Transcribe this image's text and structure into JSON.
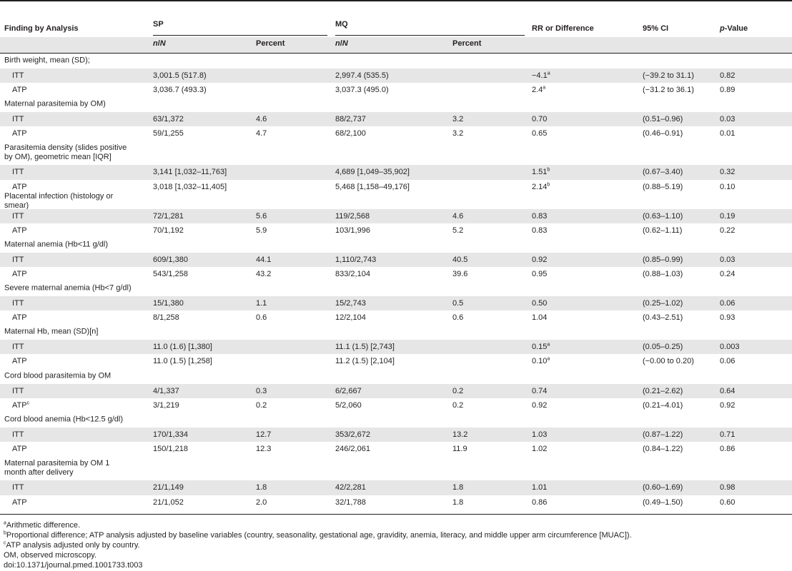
{
  "header": {
    "col_finding": "Finding by Analysis",
    "col_sp": "SP",
    "col_mq": "MQ",
    "col_rr": "RR or Difference",
    "col_ci": "95% CI",
    "col_p_italic": "p",
    "col_p_rest": "-Value",
    "sub_n_a": "n",
    "sub_slash": "/",
    "sub_n_b": "N",
    "sub_percent": "Percent"
  },
  "sections": [
    {
      "title": "Birth weight, mean (SD);",
      "rows": [
        {
          "label": "ITT",
          "sp_n": "3,001.5 (517.8)",
          "sp_pct": "",
          "mq_n": "2,997.4 (535.5)",
          "mq_pct": "",
          "rr": "−4.1",
          "rr_sup": "a",
          "ci": "(−39.2 to 31.1)",
          "p": "0.82"
        },
        {
          "label": "ATP",
          "sp_n": "3,036.7 (493.3)",
          "sp_pct": "",
          "mq_n": "3,037.3 (495.0)",
          "mq_pct": "",
          "rr": "2.4",
          "rr_sup": "a",
          "ci": "(−31.2 to 36.1)",
          "p": "0.89"
        }
      ]
    },
    {
      "title": "Maternal parasitemia by OM)",
      "rows": [
        {
          "label": "ITT",
          "sp_n": "63/1,372",
          "sp_pct": "4.6",
          "mq_n": "88/2,737",
          "mq_pct": "3.2",
          "rr": "0.70",
          "rr_sup": "",
          "ci": "(0.51–0.96)",
          "p": "0.03"
        },
        {
          "label": "ATP",
          "sp_n": "59/1,255",
          "sp_pct": "4.7",
          "mq_n": "68/2,100",
          "mq_pct": "3.2",
          "rr": "0.65",
          "rr_sup": "",
          "ci": "(0.46–0.91)",
          "p": "0.01"
        }
      ]
    },
    {
      "title": "Parasitemia density (slides positive by OM), geometric mean [IQR]",
      "rows": [
        {
          "label": "ITT",
          "sp_n": "3,141 [1,032–11,763]",
          "sp_pct": "",
          "mq_n": "4,689 [1,049–35,902]",
          "mq_pct": "",
          "rr": "1.51",
          "rr_sup": "b",
          "ci": "(0.67–3.40)",
          "p": "0.32"
        },
        {
          "label": "ATP",
          "sp_n": "3,018 [1,032–11,405]",
          "sp_pct": "",
          "mq_n": "5,468 [1,158–49,176]",
          "mq_pct": "",
          "rr": "2.14",
          "rr_sup": "b",
          "ci": "(0.88–5.19)",
          "p": "0.10"
        }
      ]
    },
    {
      "title": "Placental infection (histology or smear)",
      "rows": [
        {
          "label": "ITT",
          "sp_n": "72/1,281",
          "sp_pct": "5.6",
          "mq_n": "119/2,568",
          "mq_pct": "4.6",
          "rr": "0.83",
          "rr_sup": "",
          "ci": "(0.63–1.10)",
          "p": "0.19"
        },
        {
          "label": "ATP",
          "sp_n": "70/1,192",
          "sp_pct": "5.9",
          "mq_n": "103/1,996",
          "mq_pct": "5.2",
          "rr": "0.83",
          "rr_sup": "",
          "ci": "(0.62–1.11)",
          "p": "0.22"
        }
      ]
    },
    {
      "title": "Maternal anemia (Hb<11 g/dl)",
      "rows": [
        {
          "label": "ITT",
          "sp_n": "609/1,380",
          "sp_pct": "44.1",
          "mq_n": "1,110/2,743",
          "mq_pct": "40.5",
          "rr": "0.92",
          "rr_sup": "",
          "ci": "(0.85–0.99)",
          "p": "0.03"
        },
        {
          "label": "ATP",
          "sp_n": "543/1,258",
          "sp_pct": "43.2",
          "mq_n": "833/2,104",
          "mq_pct": "39.6",
          "rr": "0.95",
          "rr_sup": "",
          "ci": "(0.88–1.03)",
          "p": "0.24"
        }
      ]
    },
    {
      "title": "Severe maternal anemia (Hb<7 g/dl)",
      "rows": [
        {
          "label": "ITT",
          "sp_n": "15/1,380",
          "sp_pct": "1.1",
          "mq_n": "15/2,743",
          "mq_pct": "0.5",
          "rr": "0.50",
          "rr_sup": "",
          "ci": "(0.25–1.02)",
          "p": "0.06"
        },
        {
          "label": "ATP",
          "sp_n": "8/1,258",
          "sp_pct": "0.6",
          "mq_n": "12/2,104",
          "mq_pct": "0.6",
          "rr": "1.04",
          "rr_sup": "",
          "ci": "(0.43–2.51)",
          "p": "0.93"
        }
      ]
    },
    {
      "title": "Maternal Hb, mean (SD)[n]",
      "rows": [
        {
          "label": "ITT",
          "sp_n": "11.0 (1.6) [1,380]",
          "sp_pct": "",
          "mq_n": "11.1 (1.5) [2,743]",
          "mq_pct": "",
          "rr": "0.15",
          "rr_sup": "a",
          "ci": "(0.05–0.25)",
          "p": "0.003"
        },
        {
          "label": "ATP",
          "sp_n": "11.0 (1.5) [1,258]",
          "sp_pct": "",
          "mq_n": "11.2 (1.5) [2,104]",
          "mq_pct": "",
          "rr": "0.10",
          "rr_sup": "a",
          "ci": "(−0.00 to 0.20)",
          "p": "0.06"
        }
      ]
    },
    {
      "title": "Cord blood parasitemia by OM",
      "rows": [
        {
          "label": "ITT",
          "sp_n": "4/1,337",
          "sp_pct": "0.3",
          "mq_n": "6/2,667",
          "mq_pct": "0.2",
          "rr": "0.74",
          "rr_sup": "",
          "ci": "(0.21–2.62)",
          "p": "0.64"
        },
        {
          "label": "ATP",
          "label_sup": "c",
          "sp_n": "3/1,219",
          "sp_pct": "0.2",
          "mq_n": "5/2,060",
          "mq_pct": "0.2",
          "rr": "0.92",
          "rr_sup": "",
          "ci": "(0.21–4.01)",
          "p": "0.92"
        }
      ]
    },
    {
      "title": "Cord blood anemia (Hb<12.5 g/dl)",
      "rows": [
        {
          "label": "ITT",
          "sp_n": "170/1,334",
          "sp_pct": "12.7",
          "mq_n": "353/2,672",
          "mq_pct": "13.2",
          "rr": "1.03",
          "rr_sup": "",
          "ci": "(0.87–1.22)",
          "p": "0.71"
        },
        {
          "label": "ATP",
          "sp_n": "150/1,218",
          "sp_pct": "12.3",
          "mq_n": "246/2,061",
          "mq_pct": "11.9",
          "rr": "1.02",
          "rr_sup": "",
          "ci": "(0.84–1.22)",
          "p": "0.86"
        }
      ]
    },
    {
      "title": "Maternal parasitemia by OM 1 month after delivery",
      "rows": [
        {
          "label": "ITT",
          "sp_n": "21/1,149",
          "sp_pct": "1.8",
          "mq_n": "42/2,281",
          "mq_pct": "1.8",
          "rr": "1.01",
          "rr_sup": "",
          "ci": "(0.60–1.69)",
          "p": "0.98"
        },
        {
          "label": "ATP",
          "sp_n": "21/1,052",
          "sp_pct": "2.0",
          "mq_n": "32/1,788",
          "mq_pct": "1.8",
          "rr": "0.86",
          "rr_sup": "",
          "ci": "(0.49–1.50)",
          "p": "0.60"
        }
      ]
    }
  ],
  "footnotes": [
    {
      "sup": "a",
      "text": "Arithmetic difference."
    },
    {
      "sup": "b",
      "text": "Proportional difference; ATP analysis adjusted by baseline variables (country, seasonality, gestational age, gravidity, anemia, literacy, and middle upper arm circumference [MUAC])."
    },
    {
      "sup": "c",
      "text": "ATP analysis adjusted only by country."
    },
    {
      "sup": "",
      "text": "OM, observed microscopy."
    },
    {
      "sup": "",
      "text": "doi:10.1371/journal.pmed.1001733.t003"
    }
  ]
}
